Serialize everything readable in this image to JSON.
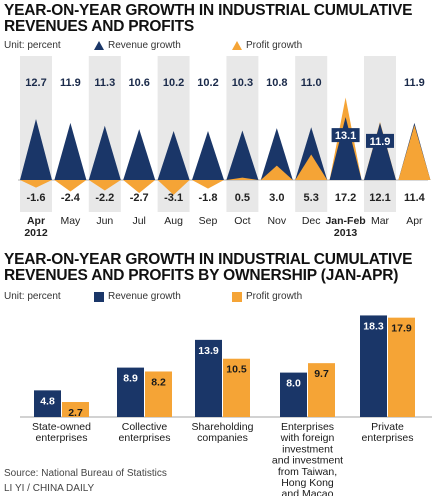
{
  "chart1": {
    "title_line1": "YEAR-ON-YEAR GROWTH IN INDUSTRIAL CUMULATIVE",
    "title_line2": "REVENUES AND PROFITS",
    "unit": "Unit: percent",
    "legend_revenue": "Revenue growth",
    "legend_profit": "Profit growth"
  },
  "chart2": {
    "title_line1": "YEAR-ON-YEAR GROWTH IN INDUSTRIAL CUMULATIVE",
    "title_line2": "REVENUES AND PROFITS BY OWNERSHIP (JAN-APR)",
    "unit": "Unit: percent",
    "legend_revenue": "Revenue growth",
    "legend_profit": "Profit growth"
  },
  "footer": {
    "source": "Source: National Bureau of Statistics",
    "credit": "LI YI / CHINA DAILY"
  },
  "colors": {
    "revenue": "#1a3668",
    "profit": "#f5a436",
    "band": "#e8e8e8"
  },
  "chart_data": [
    {
      "type": "area",
      "categories": [
        "Apr 2012",
        "May",
        "Jun",
        "Jul",
        "Aug",
        "Sep",
        "Oct",
        "Nov",
        "Dec",
        "Jan-Feb 2013",
        "Mar",
        "Apr"
      ],
      "series": [
        {
          "name": "Revenue growth",
          "values": [
            12.7,
            11.9,
            11.3,
            10.6,
            10.2,
            10.2,
            10.3,
            10.8,
            11.0,
            13.1,
            11.9,
            11.9
          ]
        },
        {
          "name": "Profit growth",
          "values": [
            -1.6,
            -2.4,
            -2.2,
            -2.7,
            -3.1,
            -1.8,
            0.5,
            3.0,
            5.3,
            17.2,
            12.1,
            11.4
          ]
        }
      ]
    },
    {
      "type": "bar",
      "categories": [
        "State-owned enterprises",
        "Collective enterprises",
        "Shareholding companies",
        "Enterprises with foreign investment and investment from Taiwan, Hong Kong and Macao",
        "Private enterprises"
      ],
      "category_lines": [
        [
          "State-owned",
          "enterprises"
        ],
        [
          "Collective",
          "enterprises"
        ],
        [
          "Shareholding",
          "companies"
        ],
        [
          "Enterprises",
          "with foreign",
          "investment",
          "and investment",
          "from Taiwan,",
          "Hong Kong",
          "and Macao"
        ],
        [
          "Private",
          "enterprises"
        ]
      ],
      "series": [
        {
          "name": "Revenue growth",
          "values": [
            4.8,
            8.9,
            13.9,
            8.0,
            18.3
          ]
        },
        {
          "name": "Profit growth",
          "values": [
            2.7,
            8.2,
            10.5,
            9.7,
            17.9
          ]
        }
      ]
    }
  ]
}
